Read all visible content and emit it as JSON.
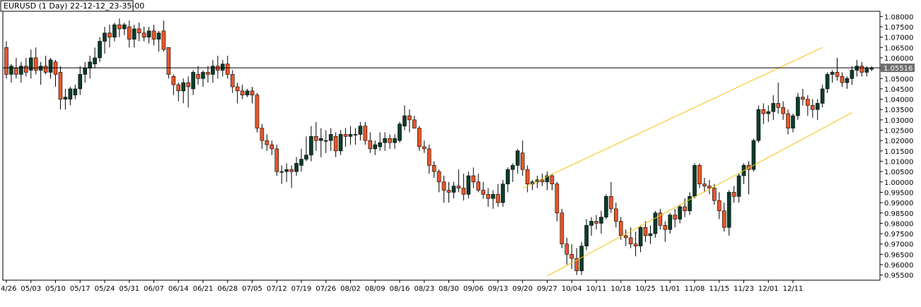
{
  "chart_data": {
    "type": "candlestick",
    "title": "EURUSD (1 Day) 22-12-12_23-35-00",
    "ylim": [
      0.9525,
      1.0825
    ],
    "y_ticks": [
      "1.08000",
      "1.07500",
      "1.07000",
      "1.06500",
      "1.06000",
      "1.05500",
      "1.05000",
      "1.04500",
      "1.04000",
      "1.03500",
      "1.03000",
      "1.02500",
      "1.02000",
      "1.01500",
      "1.01000",
      "1.00500",
      "1.00000",
      "0.99500",
      "0.99000",
      "0.98500",
      "0.98000",
      "0.97500",
      "0.97000",
      "0.96500",
      "0.96000",
      "0.95500"
    ],
    "x_tick_labels": [
      "4/26",
      "05/03",
      "05/10",
      "05/17",
      "05/24",
      "05/31",
      "06/07",
      "06/14",
      "06/21",
      "06/28",
      "07/05",
      "07/12",
      "07/19",
      "07/26",
      "08/02",
      "08/09",
      "08/16",
      "08/23",
      "08/30",
      "09/06",
      "09/13",
      "09/20",
      "09/27",
      "10/04",
      "10/11",
      "10/18",
      "10/25",
      "11/01",
      "11/08",
      "11/15",
      "11/23",
      "12/01",
      "12/11"
    ],
    "x_tick_bar_index": [
      0,
      5,
      10,
      15,
      20,
      25,
      30,
      35,
      40,
      45,
      50,
      55,
      60,
      65,
      70,
      75,
      80,
      85,
      90,
      95,
      100,
      105,
      110,
      115,
      120,
      125,
      130,
      135,
      140,
      145,
      150,
      155,
      160
    ],
    "current_price": "1.05516",
    "current_price_value": 1.05516,
    "colors": {
      "up": "#0b3d2a",
      "down": "#e8572a",
      "wick": "#000000",
      "channel": "#f4c20d",
      "price_line": "#000000",
      "price_label_bg": "#6e6e6e"
    },
    "channel": {
      "upper": {
        "from_bar": 105,
        "from_price": 0.997,
        "to_bar": 166,
        "to_price": 1.065
      },
      "lower": {
        "from_bar": 110,
        "from_price": 0.9545,
        "to_bar": 172,
        "to_price": 1.0335
      }
    },
    "candles": [
      {
        "o": 1.065,
        "h": 1.068,
        "l": 1.05,
        "c": 1.052
      },
      {
        "o": 1.052,
        "h": 1.057,
        "l": 1.048,
        "c": 1.056
      },
      {
        "o": 1.055,
        "h": 1.06,
        "l": 1.05,
        "c": 1.052
      },
      {
        "o": 1.052,
        "h": 1.058,
        "l": 1.048,
        "c": 1.056
      },
      {
        "o": 1.056,
        "h": 1.06,
        "l": 1.051,
        "c": 1.053
      },
      {
        "o": 1.054,
        "h": 1.064,
        "l": 1.05,
        "c": 1.06
      },
      {
        "o": 1.06,
        "h": 1.065,
        "l": 1.052,
        "c": 1.054
      },
      {
        "o": 1.054,
        "h": 1.058,
        "l": 1.047,
        "c": 1.056
      },
      {
        "o": 1.056,
        "h": 1.061,
        "l": 1.052,
        "c": 1.053
      },
      {
        "o": 1.053,
        "h": 1.06,
        "l": 1.05,
        "c": 1.059
      },
      {
        "o": 1.058,
        "h": 1.059,
        "l": 1.046,
        "c": 1.052
      },
      {
        "o": 1.053,
        "h": 1.056,
        "l": 1.035,
        "c": 1.04
      },
      {
        "o": 1.04,
        "h": 1.045,
        "l": 1.035,
        "c": 1.041
      },
      {
        "o": 1.04,
        "h": 1.046,
        "l": 1.037,
        "c": 1.045
      },
      {
        "o": 1.042,
        "h": 1.047,
        "l": 1.04,
        "c": 1.045
      },
      {
        "o": 1.045,
        "h": 1.056,
        "l": 1.042,
        "c": 1.052
      },
      {
        "o": 1.052,
        "h": 1.058,
        "l": 1.048,
        "c": 1.055
      },
      {
        "o": 1.055,
        "h": 1.061,
        "l": 1.05,
        "c": 1.058
      },
      {
        "o": 1.057,
        "h": 1.065,
        "l": 1.055,
        "c": 1.06
      },
      {
        "o": 1.06,
        "h": 1.07,
        "l": 1.058,
        "c": 1.068
      },
      {
        "o": 1.068,
        "h": 1.075,
        "l": 1.062,
        "c": 1.072
      },
      {
        "o": 1.072,
        "h": 1.076,
        "l": 1.065,
        "c": 1.07
      },
      {
        "o": 1.07,
        "h": 1.077,
        "l": 1.068,
        "c": 1.076
      },
      {
        "o": 1.076,
        "h": 1.079,
        "l": 1.07,
        "c": 1.074
      },
      {
        "o": 1.074,
        "h": 1.077,
        "l": 1.071,
        "c": 1.076
      },
      {
        "o": 1.075,
        "h": 1.078,
        "l": 1.065,
        "c": 1.069
      },
      {
        "o": 1.069,
        "h": 1.076,
        "l": 1.065,
        "c": 1.074
      },
      {
        "o": 1.074,
        "h": 1.077,
        "l": 1.068,
        "c": 1.072
      },
      {
        "o": 1.072,
        "h": 1.075,
        "l": 1.068,
        "c": 1.07
      },
      {
        "o": 1.07,
        "h": 1.075,
        "l": 1.067,
        "c": 1.073
      },
      {
        "o": 1.073,
        "h": 1.076,
        "l": 1.066,
        "c": 1.069
      },
      {
        "o": 1.069,
        "h": 1.073,
        "l": 1.063,
        "c": 1.072
      },
      {
        "o": 1.073,
        "h": 1.078,
        "l": 1.063,
        "c": 1.064
      },
      {
        "o": 1.065,
        "h": 1.065,
        "l": 1.05,
        "c": 1.052
      },
      {
        "o": 1.051,
        "h": 1.052,
        "l": 1.042,
        "c": 1.047
      },
      {
        "o": 1.047,
        "h": 1.048,
        "l": 1.039,
        "c": 1.044
      },
      {
        "o": 1.044,
        "h": 1.05,
        "l": 1.038,
        "c": 1.048
      },
      {
        "o": 1.048,
        "h": 1.051,
        "l": 1.036,
        "c": 1.046
      },
      {
        "o": 1.045,
        "h": 1.054,
        "l": 1.042,
        "c": 1.053
      },
      {
        "o": 1.052,
        "h": 1.056,
        "l": 1.047,
        "c": 1.05
      },
      {
        "o": 1.05,
        "h": 1.054,
        "l": 1.046,
        "c": 1.053
      },
      {
        "o": 1.053,
        "h": 1.056,
        "l": 1.048,
        "c": 1.052
      },
      {
        "o": 1.052,
        "h": 1.059,
        "l": 1.048,
        "c": 1.056
      },
      {
        "o": 1.056,
        "h": 1.061,
        "l": 1.05,
        "c": 1.054
      },
      {
        "o": 1.054,
        "h": 1.059,
        "l": 1.051,
        "c": 1.057
      },
      {
        "o": 1.057,
        "h": 1.061,
        "l": 1.05,
        "c": 1.052
      },
      {
        "o": 1.052,
        "h": 1.054,
        "l": 1.043,
        "c": 1.046
      },
      {
        "o": 1.046,
        "h": 1.048,
        "l": 1.038,
        "c": 1.044
      },
      {
        "o": 1.044,
        "h": 1.047,
        "l": 1.04,
        "c": 1.042
      },
      {
        "o": 1.042,
        "h": 1.045,
        "l": 1.041,
        "c": 1.044
      },
      {
        "o": 1.044,
        "h": 1.046,
        "l": 1.038,
        "c": 1.042
      },
      {
        "o": 1.042,
        "h": 1.043,
        "l": 1.024,
        "c": 1.026
      },
      {
        "o": 1.026,
        "h": 1.028,
        "l": 1.016,
        "c": 1.02
      },
      {
        "o": 1.02,
        "h": 1.023,
        "l": 1.015,
        "c": 1.018
      },
      {
        "o": 1.018,
        "h": 1.02,
        "l": 1.013,
        "c": 1.016
      },
      {
        "o": 1.016,
        "h": 1.018,
        "l": 1.003,
        "c": 1.005
      },
      {
        "o": 1.005,
        "h": 1.008,
        "l": 0.999,
        "c": 1.005
      },
      {
        "o": 1.005,
        "h": 1.009,
        "l": 1.0,
        "c": 1.006
      },
      {
        "o": 1.006,
        "h": 1.008,
        "l": 0.997,
        "c": 1.005
      },
      {
        "o": 1.005,
        "h": 1.012,
        "l": 1.003,
        "c": 1.009
      },
      {
        "o": 1.008,
        "h": 1.016,
        "l": 1.005,
        "c": 1.011
      },
      {
        "o": 1.011,
        "h": 1.022,
        "l": 1.01,
        "c": 1.013
      },
      {
        "o": 1.013,
        "h": 1.027,
        "l": 1.01,
        "c": 1.022
      },
      {
        "o": 1.022,
        "h": 1.029,
        "l": 1.015,
        "c": 1.02
      },
      {
        "o": 1.02,
        "h": 1.026,
        "l": 1.012,
        "c": 1.021
      },
      {
        "o": 1.02,
        "h": 1.025,
        "l": 1.014,
        "c": 1.02
      },
      {
        "o": 1.02,
        "h": 1.026,
        "l": 1.015,
        "c": 1.023
      },
      {
        "o": 1.022,
        "h": 1.024,
        "l": 1.012,
        "c": 1.015
      },
      {
        "o": 1.015,
        "h": 1.025,
        "l": 1.013,
        "c": 1.023
      },
      {
        "o": 1.023,
        "h": 1.026,
        "l": 1.017,
        "c": 1.022
      },
      {
        "o": 1.022,
        "h": 1.027,
        "l": 1.018,
        "c": 1.023
      },
      {
        "o": 1.023,
        "h": 1.026,
        "l": 1.018,
        "c": 1.023
      },
      {
        "o": 1.023,
        "h": 1.029,
        "l": 1.02,
        "c": 1.027
      },
      {
        "o": 1.027,
        "h": 1.029,
        "l": 1.018,
        "c": 1.02
      },
      {
        "o": 1.02,
        "h": 1.024,
        "l": 1.014,
        "c": 1.016
      },
      {
        "o": 1.016,
        "h": 1.02,
        "l": 1.013,
        "c": 1.018
      },
      {
        "o": 1.017,
        "h": 1.024,
        "l": 1.015,
        "c": 1.019
      },
      {
        "o": 1.019,
        "h": 1.024,
        "l": 1.015,
        "c": 1.021
      },
      {
        "o": 1.021,
        "h": 1.023,
        "l": 1.016,
        "c": 1.019
      },
      {
        "o": 1.019,
        "h": 1.023,
        "l": 1.016,
        "c": 1.021
      },
      {
        "o": 1.02,
        "h": 1.029,
        "l": 1.019,
        "c": 1.028
      },
      {
        "o": 1.027,
        "h": 1.037,
        "l": 1.025,
        "c": 1.032
      },
      {
        "o": 1.032,
        "h": 1.035,
        "l": 1.024,
        "c": 1.03
      },
      {
        "o": 1.03,
        "h": 1.032,
        "l": 1.026,
        "c": 1.026
      },
      {
        "o": 1.026,
        "h": 1.027,
        "l": 1.015,
        "c": 1.017
      },
      {
        "o": 1.017,
        "h": 1.02,
        "l": 1.014,
        "c": 1.016
      },
      {
        "o": 1.016,
        "h": 1.018,
        "l": 1.004,
        "c": 1.008
      },
      {
        "o": 1.008,
        "h": 1.01,
        "l": 1.002,
        "c": 1.005
      },
      {
        "o": 1.005,
        "h": 1.006,
        "l": 0.995,
        "c": 1.0
      },
      {
        "o": 1.0,
        "h": 1.003,
        "l": 0.99,
        "c": 0.996
      },
      {
        "o": 0.996,
        "h": 1.0,
        "l": 0.99,
        "c": 0.995
      },
      {
        "o": 0.995,
        "h": 1.0,
        "l": 0.992,
        "c": 0.998
      },
      {
        "o": 0.998,
        "h": 1.006,
        "l": 0.995,
        "c": 0.997
      },
      {
        "o": 0.997,
        "h": 1.004,
        "l": 0.991,
        "c": 0.994
      },
      {
        "o": 0.994,
        "h": 1.005,
        "l": 0.992,
        "c": 1.003
      },
      {
        "o": 1.003,
        "h": 1.007,
        "l": 0.997,
        "c": 1.0
      },
      {
        "o": 1.0,
        "h": 1.004,
        "l": 0.995,
        "c": 0.996
      },
      {
        "o": 0.996,
        "h": 1.0,
        "l": 0.992,
        "c": 0.994
      },
      {
        "o": 0.994,
        "h": 0.997,
        "l": 0.988,
        "c": 0.992
      },
      {
        "o": 0.992,
        "h": 0.996,
        "l": 0.987,
        "c": 0.994
      },
      {
        "o": 0.994,
        "h": 0.999,
        "l": 0.988,
        "c": 0.99
      },
      {
        "o": 0.99,
        "h": 1.001,
        "l": 0.988,
        "c": 0.999
      },
      {
        "o": 0.999,
        "h": 1.007,
        "l": 0.995,
        "c": 1.006
      },
      {
        "o": 1.006,
        "h": 1.009,
        "l": 1.0,
        "c": 1.008
      },
      {
        "o": 1.008,
        "h": 1.016,
        "l": 1.004,
        "c": 1.015
      },
      {
        "o": 1.014,
        "h": 1.02,
        "l": 1.003,
        "c": 1.006
      },
      {
        "o": 1.006,
        "h": 1.008,
        "l": 0.995,
        "c": 0.999
      },
      {
        "o": 0.999,
        "h": 1.001,
        "l": 0.996,
        "c": 1.0
      },
      {
        "o": 1.0,
        "h": 1.003,
        "l": 0.997,
        "c": 1.001
      },
      {
        "o": 1.001,
        "h": 1.004,
        "l": 0.998,
        "c": 1.0
      },
      {
        "o": 1.0,
        "h": 1.005,
        "l": 0.996,
        "c": 1.003
      },
      {
        "o": 1.003,
        "h": 1.004,
        "l": 0.996,
        "c": 0.999
      },
      {
        "o": 0.999,
        "h": 1.0,
        "l": 0.981,
        "c": 0.985
      },
      {
        "o": 0.985,
        "h": 0.987,
        "l": 0.968,
        "c": 0.97
      },
      {
        "o": 0.97,
        "h": 0.973,
        "l": 0.96,
        "c": 0.965
      },
      {
        "o": 0.965,
        "h": 0.97,
        "l": 0.958,
        "c": 0.963
      },
      {
        "o": 0.963,
        "h": 0.968,
        "l": 0.955,
        "c": 0.957
      },
      {
        "o": 0.957,
        "h": 0.971,
        "l": 0.955,
        "c": 0.969
      },
      {
        "o": 0.969,
        "h": 0.982,
        "l": 0.967,
        "c": 0.979
      },
      {
        "o": 0.979,
        "h": 0.983,
        "l": 0.974,
        "c": 0.981
      },
      {
        "o": 0.981,
        "h": 0.984,
        "l": 0.977,
        "c": 0.98
      },
      {
        "o": 0.98,
        "h": 0.986,
        "l": 0.975,
        "c": 0.983
      },
      {
        "o": 0.983,
        "h": 0.994,
        "l": 0.982,
        "c": 0.993
      },
      {
        "o": 0.993,
        "h": 1.0,
        "l": 0.985,
        "c": 0.987
      },
      {
        "o": 0.987,
        "h": 0.99,
        "l": 0.978,
        "c": 0.981
      },
      {
        "o": 0.981,
        "h": 0.983,
        "l": 0.972,
        "c": 0.974
      },
      {
        "o": 0.974,
        "h": 0.977,
        "l": 0.969,
        "c": 0.973
      },
      {
        "o": 0.973,
        "h": 0.978,
        "l": 0.968,
        "c": 0.97
      },
      {
        "o": 0.97,
        "h": 0.976,
        "l": 0.964,
        "c": 0.969
      },
      {
        "o": 0.969,
        "h": 0.979,
        "l": 0.966,
        "c": 0.978
      },
      {
        "o": 0.978,
        "h": 0.981,
        "l": 0.971,
        "c": 0.974
      },
      {
        "o": 0.974,
        "h": 0.979,
        "l": 0.97,
        "c": 0.975
      },
      {
        "o": 0.975,
        "h": 0.986,
        "l": 0.973,
        "c": 0.985
      },
      {
        "o": 0.985,
        "h": 0.987,
        "l": 0.977,
        "c": 0.979
      },
      {
        "o": 0.979,
        "h": 0.981,
        "l": 0.971,
        "c": 0.977
      },
      {
        "o": 0.977,
        "h": 0.985,
        "l": 0.975,
        "c": 0.984
      },
      {
        "o": 0.984,
        "h": 0.987,
        "l": 0.978,
        "c": 0.982
      },
      {
        "o": 0.982,
        "h": 0.989,
        "l": 0.98,
        "c": 0.988
      },
      {
        "o": 0.988,
        "h": 0.992,
        "l": 0.983,
        "c": 0.986
      },
      {
        "o": 0.986,
        "h": 0.995,
        "l": 0.984,
        "c": 0.993
      },
      {
        "o": 0.993,
        "h": 1.009,
        "l": 0.992,
        "c": 1.008
      },
      {
        "o": 1.008,
        "h": 1.009,
        "l": 0.997,
        "c": 0.999
      },
      {
        "o": 0.999,
        "h": 1.002,
        "l": 0.995,
        "c": 0.998
      },
      {
        "o": 0.998,
        "h": 1.001,
        "l": 0.994,
        "c": 0.997
      },
      {
        "o": 0.997,
        "h": 0.999,
        "l": 0.989,
        "c": 0.991
      },
      {
        "o": 0.991,
        "h": 0.995,
        "l": 0.982,
        "c": 0.986
      },
      {
        "o": 0.986,
        "h": 0.99,
        "l": 0.976,
        "c": 0.978
      },
      {
        "o": 0.978,
        "h": 0.996,
        "l": 0.974,
        "c": 0.995
      },
      {
        "o": 0.995,
        "h": 0.998,
        "l": 0.99,
        "c": 0.993
      },
      {
        "o": 0.993,
        "h": 1.004,
        "l": 0.99,
        "c": 1.003
      },
      {
        "o": 1.003,
        "h": 1.009,
        "l": 0.999,
        "c": 1.008
      },
      {
        "o": 1.008,
        "h": 1.01,
        "l": 0.994,
        "c": 1.006
      },
      {
        "o": 1.006,
        "h": 1.021,
        "l": 1.005,
        "c": 1.02
      },
      {
        "o": 1.02,
        "h": 1.037,
        "l": 1.019,
        "c": 1.035
      },
      {
        "o": 1.035,
        "h": 1.038,
        "l": 1.028,
        "c": 1.033
      },
      {
        "o": 1.033,
        "h": 1.037,
        "l": 1.029,
        "c": 1.034
      },
      {
        "o": 1.034,
        "h": 1.042,
        "l": 1.03,
        "c": 1.038
      },
      {
        "o": 1.038,
        "h": 1.048,
        "l": 1.033,
        "c": 1.036
      },
      {
        "o": 1.036,
        "h": 1.039,
        "l": 1.03,
        "c": 1.033
      },
      {
        "o": 1.033,
        "h": 1.035,
        "l": 1.023,
        "c": 1.026
      },
      {
        "o": 1.026,
        "h": 1.033,
        "l": 1.024,
        "c": 1.032
      },
      {
        "o": 1.032,
        "h": 1.043,
        "l": 1.03,
        "c": 1.041
      },
      {
        "o": 1.041,
        "h": 1.045,
        "l": 1.037,
        "c": 1.04
      },
      {
        "o": 1.04,
        "h": 1.042,
        "l": 1.032,
        "c": 1.037
      },
      {
        "o": 1.037,
        "h": 1.04,
        "l": 1.031,
        "c": 1.035
      },
      {
        "o": 1.035,
        "h": 1.04,
        "l": 1.03,
        "c": 1.038
      },
      {
        "o": 1.038,
        "h": 1.047,
        "l": 1.036,
        "c": 1.045
      },
      {
        "o": 1.045,
        "h": 1.053,
        "l": 1.043,
        "c": 1.052
      },
      {
        "o": 1.052,
        "h": 1.054,
        "l": 1.048,
        "c": 1.053
      },
      {
        "o": 1.053,
        "h": 1.06,
        "l": 1.049,
        "c": 1.051
      },
      {
        "o": 1.051,
        "h": 1.053,
        "l": 1.046,
        "c": 1.048
      },
      {
        "o": 1.048,
        "h": 1.051,
        "l": 1.045,
        "c": 1.05
      },
      {
        "o": 1.05,
        "h": 1.056,
        "l": 1.047,
        "c": 1.054
      },
      {
        "o": 1.054,
        "h": 1.059,
        "l": 1.051,
        "c": 1.056
      },
      {
        "o": 1.056,
        "h": 1.058,
        "l": 1.051,
        "c": 1.053
      },
      {
        "o": 1.053,
        "h": 1.056,
        "l": 1.051,
        "c": 1.055
      },
      {
        "o": 1.0545,
        "h": 1.056,
        "l": 1.0535,
        "c": 1.0552
      }
    ]
  }
}
